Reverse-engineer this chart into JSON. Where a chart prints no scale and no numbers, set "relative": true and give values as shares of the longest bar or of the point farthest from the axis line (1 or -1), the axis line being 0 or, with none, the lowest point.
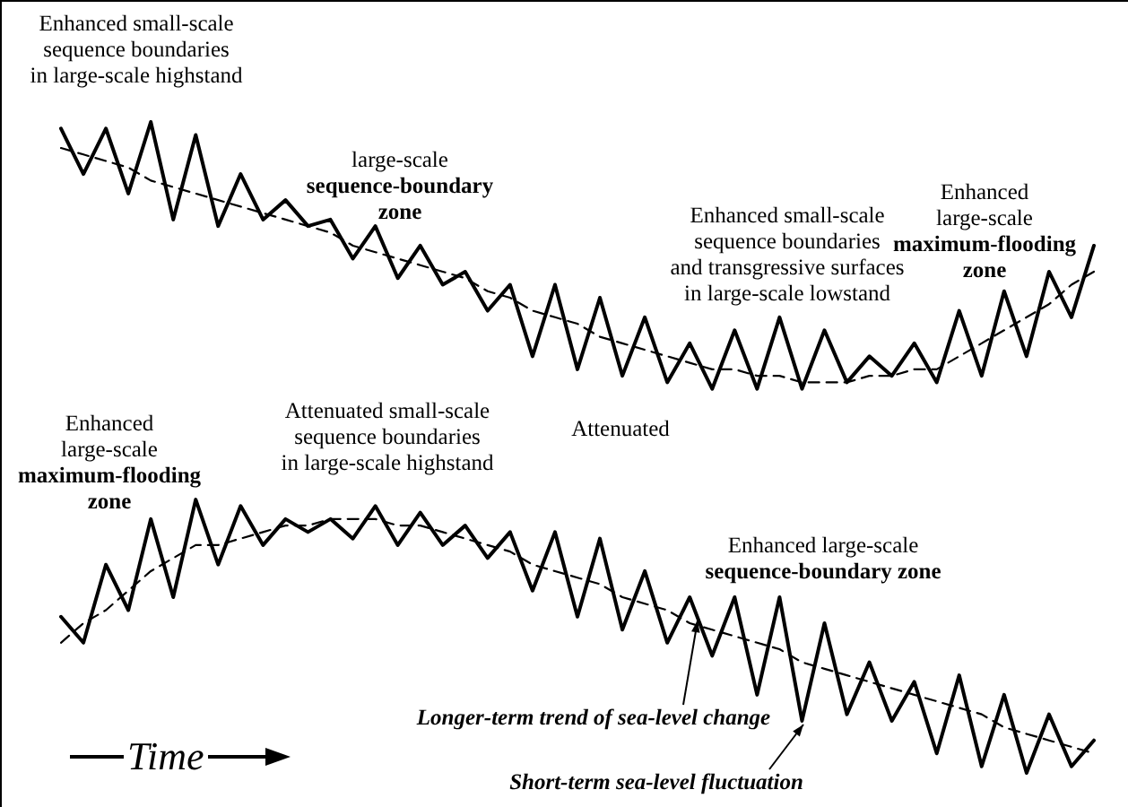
{
  "chart_data": {
    "type": "line",
    "relative": true,
    "xlabel": "Time",
    "marker": "none",
    "categories": [
      null,
      null,
      null,
      null,
      null,
      null,
      null,
      null,
      null,
      null,
      null,
      null,
      null,
      null,
      null,
      null,
      null,
      null,
      null,
      null,
      null,
      null,
      null,
      null,
      null,
      null,
      null,
      null,
      null,
      null,
      null,
      null,
      null,
      null,
      null,
      null,
      null,
      null,
      null,
      null,
      null,
      null,
      null,
      null,
      null,
      null,
      null
    ],
    "series": [
      {
        "color": "#000000",
        "line_style": "solid",
        "values": [
          0.99,
          0.92,
          0.99,
          0.89,
          1.0,
          0.85,
          0.98,
          0.84,
          0.92,
          0.85,
          0.88,
          0.84,
          0.85,
          0.79,
          0.84,
          0.76,
          0.81,
          0.75,
          0.77,
          0.71,
          0.75,
          0.64,
          0.75,
          0.62,
          0.73,
          0.61,
          0.7,
          0.6,
          0.66,
          0.59,
          0.68,
          0.59,
          0.7,
          0.59,
          0.68,
          0.6,
          0.64,
          0.61,
          0.66,
          0.6,
          0.71,
          0.61,
          0.74,
          0.64,
          0.77,
          0.7,
          0.81
        ]
      },
      {
        "color": "#000000",
        "line_style": "dashed",
        "values": [
          0.96,
          0.95,
          0.94,
          0.93,
          0.91,
          0.9,
          0.89,
          0.88,
          0.87,
          0.86,
          0.85,
          0.84,
          0.83,
          0.81,
          0.8,
          0.79,
          0.78,
          0.77,
          0.76,
          0.74,
          0.73,
          0.71,
          0.7,
          0.69,
          0.67,
          0.66,
          0.65,
          0.64,
          0.63,
          0.62,
          0.62,
          0.61,
          0.61,
          0.6,
          0.6,
          0.6,
          0.61,
          0.61,
          0.62,
          0.62,
          0.64,
          0.66,
          0.68,
          0.7,
          0.72,
          0.75,
          0.77
        ]
      },
      {
        "color": "#000000",
        "line_style": "solid",
        "values": [
          0.24,
          0.2,
          0.32,
          0.25,
          0.39,
          0.27,
          0.42,
          0.32,
          0.41,
          0.35,
          0.39,
          0.37,
          0.39,
          0.36,
          0.41,
          0.35,
          0.4,
          0.35,
          0.38,
          0.33,
          0.37,
          0.28,
          0.37,
          0.24,
          0.36,
          0.22,
          0.31,
          0.2,
          0.27,
          0.18,
          0.27,
          0.12,
          0.27,
          0.08,
          0.23,
          0.09,
          0.17,
          0.08,
          0.14,
          0.03,
          0.15,
          0.01,
          0.12,
          0.0,
          0.09,
          0.01,
          0.05
        ]
      },
      {
        "color": "#000000",
        "line_style": "dashed",
        "values": [
          0.2,
          0.23,
          0.25,
          0.28,
          0.31,
          0.33,
          0.35,
          0.35,
          0.36,
          0.37,
          0.38,
          0.38,
          0.39,
          0.39,
          0.39,
          0.38,
          0.38,
          0.37,
          0.36,
          0.35,
          0.34,
          0.32,
          0.31,
          0.3,
          0.29,
          0.27,
          0.26,
          0.25,
          0.23,
          0.22,
          0.21,
          0.2,
          0.19,
          0.17,
          0.16,
          0.15,
          0.14,
          0.13,
          0.12,
          0.11,
          0.1,
          0.09,
          0.07,
          0.06,
          0.05,
          0.04,
          0.03
        ]
      }
    ],
    "annotations": [
      "Enhanced small-scale\nsequence boundaries\nin large-scale highstand",
      "large-scale\nsequence-boundary\nzone",
      "Enhanced small-scale\nsequence boundaries\nand transgressive surfaces\nin large-scale lowstand",
      "Enhanced\nlarge-scale\nmaximum-flooding\nzone",
      "Attenuated",
      "Enhanced\nlarge-scale\nmaximum-flooding\nzone",
      "Attenuated small-scale\nsequence boundaries\nin large-scale highstand",
      "Enhanced large-scale\nsequence-boundary zone",
      "Longer-term trend of sea-level change",
      "Short-term sea-level fluctuation"
    ]
  }
}
